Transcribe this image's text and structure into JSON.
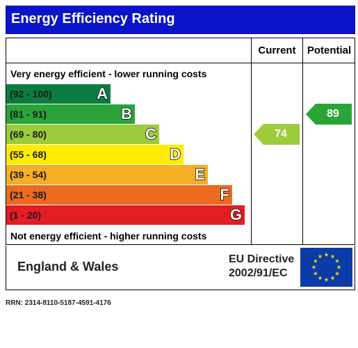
{
  "title": "Energy Efficiency Rating",
  "columns": {
    "current": "Current",
    "potential": "Potential"
  },
  "captions": {
    "top": "Very energy efficient - lower running costs",
    "bottom": "Not energy efficient - higher running costs"
  },
  "bands": [
    {
      "letter": "A",
      "range": "(92 - 100)",
      "color": "#0c7d40"
    },
    {
      "letter": "B",
      "range": "(81 - 91)",
      "color": "#2aa438"
    },
    {
      "letter": "C",
      "range": "(69 - 80)",
      "color": "#9ccb3b"
    },
    {
      "letter": "D",
      "range": "(55 - 68)",
      "color": "#ffec00"
    },
    {
      "letter": "E",
      "range": "(39 - 54)",
      "color": "#f6ae24"
    },
    {
      "letter": "F",
      "range": "(21 - 38)",
      "color": "#ed6b21"
    },
    {
      "letter": "G",
      "range": "(1 - 20)",
      "color": "#e31d24"
    }
  ],
  "ratings": {
    "current": {
      "value": "74",
      "band": "C",
      "color": "#9ccb3b"
    },
    "potential": {
      "value": "89",
      "band": "B",
      "color": "#2aa438"
    }
  },
  "footer": {
    "region": "England & Wales",
    "directive_line1": "EU Directive",
    "directive_line2": "2002/91/EC",
    "flag_icon": "eu-flag-icon",
    "flag_color": "#0a3ba6",
    "star_color": "#ffe100"
  },
  "rrn": "RRN: 2314-8110-5187-4591-4176"
}
